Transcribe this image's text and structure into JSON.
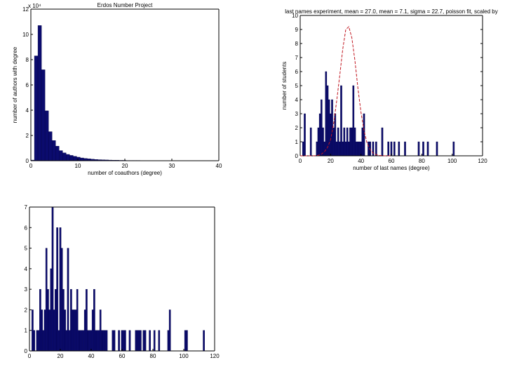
{
  "chart_data": [
    {
      "id": "erdos",
      "type": "bar",
      "title": "Erdos Number Project",
      "xlabel": "number of coauthors (degree)",
      "ylabel": "number of authors with degree",
      "exponent_label": "x 10⁴",
      "xlim": [
        0,
        40
      ],
      "ylim": [
        0,
        12
      ],
      "xticks": [
        0,
        10,
        20,
        30,
        40
      ],
      "yticks": [
        0,
        2,
        4,
        6,
        8,
        10,
        12
      ],
      "bin_width": 0.75,
      "x": [
        0.38,
        1.13,
        1.88,
        2.63,
        3.38,
        4.13,
        4.88,
        5.63,
        6.38,
        7.13,
        7.88,
        8.63,
        9.38,
        10.13,
        10.88,
        11.63,
        12.38,
        13.13,
        13.88,
        14.63,
        15.38,
        16.13,
        16.88,
        17.63,
        18.38,
        19.13,
        19.88,
        20.63,
        21.38,
        22.13,
        22.88,
        23.63
      ],
      "values": [
        0.05,
        8.3,
        10.7,
        7.2,
        3.95,
        2.3,
        1.6,
        1.15,
        0.8,
        0.62,
        0.5,
        0.42,
        0.35,
        0.28,
        0.22,
        0.18,
        0.15,
        0.12,
        0.1,
        0.08,
        0.07,
        0.06,
        0.05,
        0.04,
        0.04,
        0.03,
        0.03,
        0.02,
        0.02,
        0.02,
        0.02,
        0.01
      ]
    },
    {
      "id": "fit",
      "type": "bar",
      "title": "last names experiment, mean = 27.0, mean = 7.1, sigma = 22.7, poisson fit, scaled by",
      "xlabel": "number of last names (degree)",
      "ylabel": "number of students",
      "xlim": [
        0,
        120
      ],
      "ylim": [
        0,
        10
      ],
      "xticks": [
        0,
        20,
        40,
        60,
        80,
        100,
        120
      ],
      "yticks": [
        0,
        1,
        2,
        3,
        4,
        5,
        6,
        7,
        8,
        9,
        10
      ],
      "bin_width": 1,
      "x": [
        2,
        3,
        7,
        11,
        12,
        13,
        14,
        15,
        16,
        17,
        18,
        19,
        20,
        21,
        22,
        23,
        24,
        25,
        26,
        27,
        28,
        29,
        30,
        31,
        32,
        33,
        34,
        35,
        36,
        37,
        38,
        39,
        40,
        41,
        42,
        45,
        46,
        48,
        50,
        54,
        58,
        60,
        62,
        65,
        69,
        78,
        81,
        84,
        90,
        101
      ],
      "values": [
        1,
        3,
        2,
        1,
        2,
        3,
        4,
        2,
        1,
        6,
        5,
        4,
        3,
        4,
        2,
        3,
        1,
        2,
        1,
        5,
        1,
        2,
        1,
        2,
        1,
        2,
        2,
        5,
        2,
        1,
        1,
        1,
        1,
        2,
        3,
        1,
        1,
        1,
        1,
        2,
        1,
        1,
        1,
        1,
        1,
        1,
        1,
        1,
        1,
        1
      ],
      "fit_series": {
        "name": "fit",
        "style": "dashed",
        "x": [
          0,
          2,
          4,
          6,
          8,
          10,
          12,
          14,
          16,
          18,
          20,
          22,
          24,
          26,
          28,
          30,
          32,
          34,
          36,
          38,
          40,
          42,
          44,
          46,
          48,
          50,
          52,
          54,
          56,
          58,
          60
        ],
        "y": [
          0,
          0,
          0,
          0,
          0,
          0.01,
          0.04,
          0.12,
          0.3,
          0.6,
          1.15,
          2.3,
          3.9,
          5.7,
          7.6,
          9.0,
          9.2,
          8.4,
          6.8,
          4.8,
          3.1,
          1.8,
          0.9,
          0.45,
          0.2,
          0.08,
          0.03,
          0.01,
          0,
          0,
          0
        ]
      }
    },
    {
      "id": "hist",
      "type": "bar",
      "title": "",
      "xlabel": "",
      "ylabel": "",
      "xlim": [
        0,
        120
      ],
      "ylim": [
        0,
        7
      ],
      "xticks": [
        0,
        20,
        40,
        60,
        80,
        100,
        120
      ],
      "yticks": [
        0,
        1,
        2,
        3,
        4,
        5,
        6,
        7
      ],
      "bin_width": 1,
      "x": [
        2,
        3,
        5,
        6,
        7,
        8,
        9,
        10,
        11,
        12,
        13,
        14,
        15,
        16,
        17,
        18,
        19,
        20,
        21,
        22,
        23,
        24,
        25,
        26,
        27,
        28,
        29,
        30,
        31,
        32,
        33,
        34,
        35,
        36,
        37,
        38,
        39,
        40,
        41,
        42,
        43,
        44,
        45,
        46,
        47,
        48,
        49,
        50,
        54,
        55,
        58,
        60,
        61,
        62,
        65,
        69,
        70,
        71,
        72,
        74,
        75,
        78,
        81,
        84,
        90,
        91,
        101,
        102,
        113
      ],
      "values": [
        2,
        1,
        1,
        1,
        3,
        2,
        1,
        2,
        5,
        3,
        2,
        4,
        7,
        2,
        3,
        6,
        1,
        6,
        5,
        3,
        2,
        1,
        5,
        1,
        3,
        2,
        2,
        2,
        3,
        1,
        1,
        1,
        1,
        2,
        3,
        1,
        1,
        1,
        2,
        3,
        1,
        1,
        1,
        2,
        1,
        1,
        1,
        1,
        1,
        1,
        1,
        1,
        1,
        1,
        1,
        1,
        1,
        1,
        1,
        1,
        1,
        1,
        1,
        1,
        1,
        2,
        1,
        1,
        1
      ]
    }
  ]
}
